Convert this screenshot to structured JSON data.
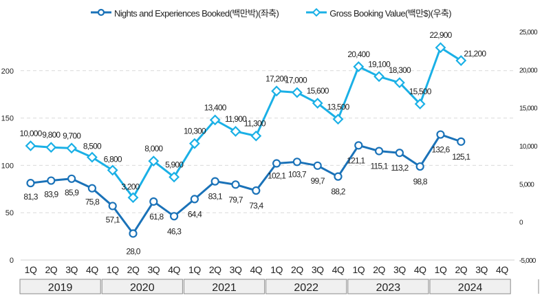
{
  "chart_data": {
    "type": "line",
    "title": "",
    "legend_position": "top-center",
    "grid": true,
    "quarters": [
      "1Q",
      "2Q",
      "3Q",
      "4Q",
      "1Q",
      "2Q",
      "3Q",
      "4Q",
      "1Q",
      "2Q",
      "3Q",
      "4Q",
      "1Q",
      "2Q",
      "3Q",
      "4Q",
      "1Q",
      "2Q",
      "3Q",
      "4Q",
      "1Q",
      "2Q",
      "3Q",
      "4Q"
    ],
    "years": [
      "2019",
      "2020",
      "2021",
      "2022",
      "2023",
      "2024"
    ],
    "y_left": {
      "ticks": [
        "0",
        "50",
        "100",
        "150",
        "200"
      ],
      "range": [
        0,
        230
      ]
    },
    "y_right": {
      "ticks": [
        "-5,000",
        "0",
        "5,000",
        "10,000",
        "15,000",
        "20,000",
        "25,000"
      ],
      "range": [
        -5000,
        25000
      ]
    },
    "series": [
      {
        "name": "Nights and Experiences Booked(백만박)(좌축)",
        "axis": "left",
        "color": "#1a72b8",
        "marker": "circle",
        "values": [
          81.3,
          83.9,
          85.9,
          75.8,
          57.1,
          28.0,
          61.8,
          46.3,
          64.4,
          83.1,
          79.7,
          73.4,
          102.1,
          103.7,
          99.7,
          88.2,
          121.1,
          115.1,
          113.2,
          98.8,
          132.6,
          125.1,
          null,
          null
        ],
        "labels": [
          "81,3",
          "83,9",
          "85,9",
          "75,8",
          "57,1",
          "28,0",
          "61,8",
          "46,3",
          "64,4",
          "83,1",
          "79,7",
          "73,4",
          "102,1",
          "103,7",
          "99,7",
          "88,2",
          "121,1",
          "115,1",
          "113,2",
          "98,8",
          "132,6",
          "125,1"
        ]
      },
      {
        "name": "Gross Booking Value(백만$)(우축)",
        "axis": "right",
        "color": "#1ab0e6",
        "marker": "diamond",
        "values": [
          10000,
          9800,
          9700,
          8500,
          6800,
          3200,
          8000,
          5900,
          10300,
          13400,
          11900,
          11300,
          17200,
          17000,
          15600,
          13500,
          20400,
          19100,
          18300,
          15500,
          22900,
          21200,
          null,
          null
        ],
        "labels": [
          "10,000",
          "9,800",
          "9,700",
          "8,500",
          "6,800",
          "3,200",
          "8,000",
          "5,900",
          "10,300",
          "13,400",
          "11,900",
          "11,300",
          "17,200",
          "17,000",
          "15,600",
          "13,500",
          "20,400",
          "19,100",
          "18,300",
          "15,500",
          "22,900",
          "21,200"
        ]
      }
    ]
  }
}
